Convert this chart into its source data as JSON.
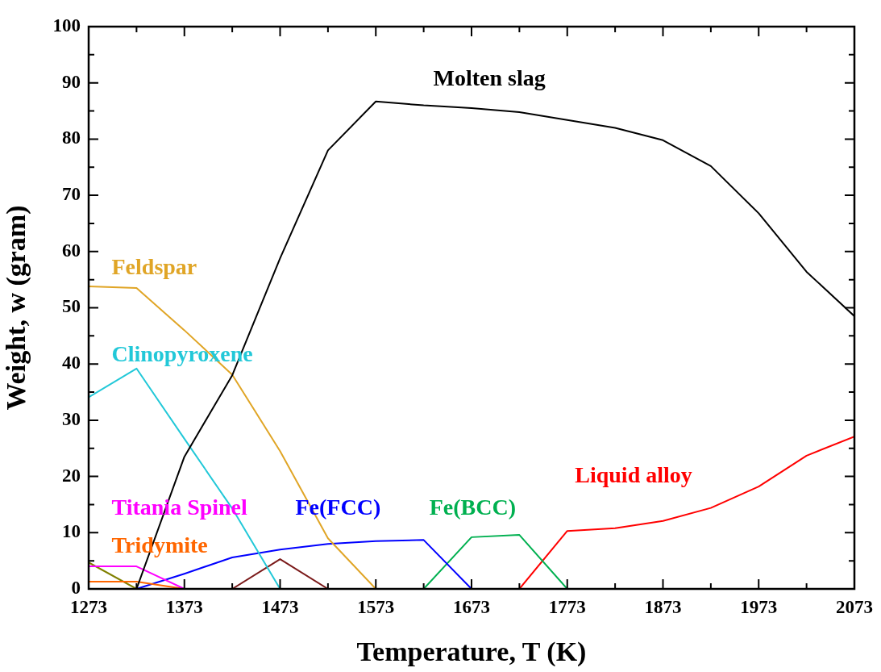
{
  "chart_data": {
    "type": "line",
    "xlabel": "Temperature, T (K)",
    "ylabel": "Weight, w (gram)",
    "x": [
      1273,
      1323,
      1373,
      1423,
      1473,
      1523,
      1573,
      1623,
      1673,
      1723,
      1773,
      1823,
      1873,
      1923,
      1973,
      2023,
      2073
    ],
    "xlim": [
      1273,
      2073
    ],
    "xticks": [
      1273,
      {
        "value": 1323,
        "label": null
      },
      1373,
      {
        "value": 1423,
        "label": null
      },
      1473,
      {
        "value": 1523,
        "label": null
      },
      1573,
      {
        "value": 1623,
        "label": null
      },
      1673,
      {
        "value": 1723,
        "label": null
      },
      1773,
      {
        "value": 1823,
        "label": null
      },
      1873,
      {
        "value": 1923,
        "label": null
      },
      1973,
      {
        "value": 2023,
        "label": null
      },
      2073
    ],
    "ylim": [
      0,
      100
    ],
    "yticks": [
      0,
      {
        "value": 5,
        "label": null
      },
      10,
      {
        "value": 15,
        "label": null
      },
      20,
      {
        "value": 25,
        "label": null
      },
      30,
      {
        "value": 35,
        "label": null
      },
      40,
      {
        "value": 45,
        "label": null
      },
      50,
      {
        "value": 55,
        "label": null
      },
      60,
      {
        "value": 65,
        "label": null
      },
      70,
      {
        "value": 75,
        "label": null
      },
      80,
      {
        "value": 85,
        "label": null
      },
      90,
      {
        "value": 95,
        "label": null
      },
      100
    ],
    "grid": false,
    "legend": false,
    "marker": "none",
    "line_style": "solid",
    "series": [
      {
        "name": "Molten slag",
        "color": "#000000",
        "values": [
          null,
          0,
          23.5,
          38,
          58.8,
          78,
          86.7,
          86,
          85.5,
          84.8,
          83.4,
          82,
          79.8,
          75.2,
          66.8,
          56.4,
          48.5
        ]
      },
      {
        "name": "Feldspar",
        "color": "#e0a526",
        "values": [
          53.8,
          53.5,
          46,
          38.1,
          24.5,
          9,
          0,
          null,
          null,
          null,
          null,
          null,
          null,
          null,
          null,
          null,
          null
        ]
      },
      {
        "name": "Clinopyroxene",
        "color": "#22c8d8",
        "values": [
          34.1,
          39.2,
          26.7,
          14.3,
          0,
          null,
          null,
          null,
          null,
          null,
          null,
          null,
          null,
          null,
          null,
          null,
          null
        ]
      },
      {
        "name": "Titania Spinel",
        "color": "#ff00ff",
        "values": [
          4,
          4,
          0,
          null,
          null,
          null,
          null,
          null,
          null,
          null,
          null,
          null,
          null,
          null,
          null,
          null,
          null
        ]
      },
      {
        "name": "Tridymite",
        "color": "#ff6600",
        "values": [
          1.3,
          1.3,
          0,
          null,
          null,
          null,
          null,
          null,
          null,
          null,
          null,
          null,
          null,
          null,
          null,
          null,
          null
        ]
      },
      {
        "color": "#808000",
        "values": [
          4.7,
          0,
          null,
          null,
          null,
          null,
          null,
          null,
          null,
          null,
          null,
          null,
          null,
          null,
          null,
          null,
          null
        ]
      },
      {
        "color": "#7b1a1a",
        "values": [
          null,
          null,
          null,
          0,
          5.3,
          0,
          null,
          null,
          null,
          null,
          null,
          null,
          null,
          null,
          null,
          null,
          null
        ]
      },
      {
        "name": "Fe(FCC)",
        "color": "#0000ff",
        "values": [
          null,
          0,
          2.7,
          5.6,
          7,
          8,
          8.5,
          8.7,
          0,
          null,
          null,
          null,
          null,
          null,
          null,
          null,
          null
        ]
      },
      {
        "name": "Fe(BCC)",
        "color": "#00b050",
        "values": [
          null,
          null,
          null,
          null,
          null,
          null,
          null,
          0,
          9.2,
          9.6,
          0,
          null,
          null,
          null,
          null,
          null,
          null
        ]
      },
      {
        "name": "Liquid alloy",
        "color": "#ff0000",
        "values": [
          null,
          null,
          null,
          null,
          null,
          null,
          null,
          null,
          null,
          0,
          10.3,
          10.8,
          12.1,
          14.4,
          18.2,
          23.7,
          27.1
        ]
      }
    ]
  }
}
